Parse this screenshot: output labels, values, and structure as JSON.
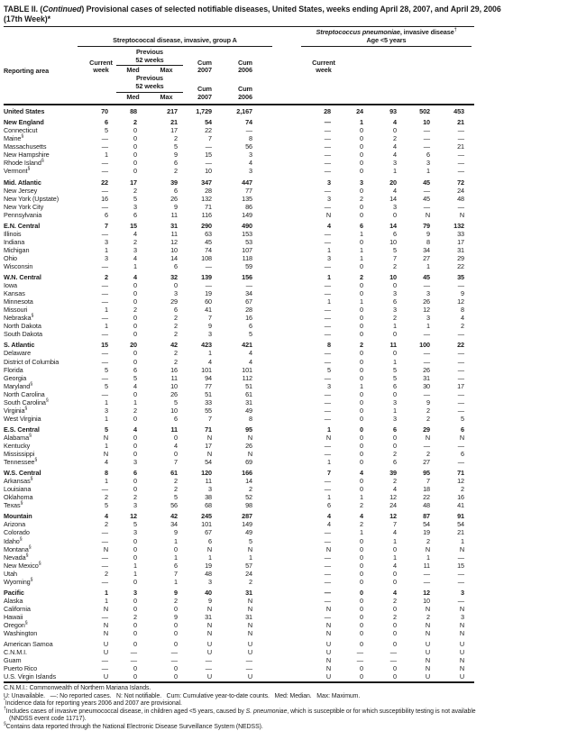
{
  "title": {
    "label": "TABLE II. (",
    "continued": "Continued",
    "rest": ") Provisional cases of selected notifiable diseases, United States, weeks ending April 28, 2007, and April 29, 2006",
    "line2": "(17th Week)*"
  },
  "table": {
    "reporting_area_label": "Reporting area",
    "group_a": {
      "title": "Streptococcal disease, invasive, group A"
    },
    "group_b": {
      "title_italic": "Streptococcus pneumoniae",
      "title_rest": ", invasive disease",
      "title_sup": "†",
      "subtitle": "Age <5 years"
    },
    "col_headers": {
      "current1": "Current",
      "current2": "week",
      "prev1": "Previous",
      "prev2": "52 weeks",
      "med": "Med",
      "max": "Max",
      "cum": "Cum",
      "y2007": "2007",
      "y2006": "2006"
    },
    "rows": [
      {
        "area": "United States",
        "bold": true,
        "gap": false,
        "a": [
          "70",
          "88",
          "217",
          "1,729",
          "2,167"
        ],
        "b": [
          "28",
          "24",
          "93",
          "502",
          "453"
        ]
      },
      {
        "area": "New England",
        "bold": true,
        "gap": true,
        "a": [
          "6",
          "2",
          "21",
          "54",
          "74"
        ],
        "b": [
          "—",
          "1",
          "4",
          "10",
          "21"
        ]
      },
      {
        "area": "Connecticut",
        "a": [
          "5",
          "0",
          "17",
          "22",
          "—"
        ],
        "b": [
          "—",
          "0",
          "0",
          "—",
          "—"
        ]
      },
      {
        "area": "Maine",
        "sup": "§",
        "a": [
          "—",
          "0",
          "2",
          "7",
          "8"
        ],
        "b": [
          "—",
          "0",
          "2",
          "—",
          "—"
        ]
      },
      {
        "area": "Massachusetts",
        "a": [
          "—",
          "0",
          "5",
          "—",
          "56"
        ],
        "b": [
          "—",
          "0",
          "4",
          "—",
          "21"
        ]
      },
      {
        "area": "New Hampshire",
        "a": [
          "1",
          "0",
          "9",
          "15",
          "3"
        ],
        "b": [
          "—",
          "0",
          "4",
          "6",
          "—"
        ]
      },
      {
        "area": "Rhode Island",
        "sup": "§",
        "a": [
          "—",
          "0",
          "6",
          "—",
          "4"
        ],
        "b": [
          "—",
          "0",
          "3",
          "3",
          "—"
        ]
      },
      {
        "area": "Vermont",
        "sup": "§",
        "a": [
          "—",
          "0",
          "2",
          "10",
          "3"
        ],
        "b": [
          "—",
          "0",
          "1",
          "1",
          "—"
        ]
      },
      {
        "area": "Mid. Atlantic",
        "bold": true,
        "gap": true,
        "a": [
          "22",
          "17",
          "39",
          "347",
          "447"
        ],
        "b": [
          "3",
          "3",
          "20",
          "45",
          "72"
        ]
      },
      {
        "area": "New Jersey",
        "a": [
          "—",
          "2",
          "6",
          "28",
          "77"
        ],
        "b": [
          "—",
          "0",
          "4",
          "—",
          "24"
        ]
      },
      {
        "area": "New York (Upstate)",
        "a": [
          "16",
          "5",
          "26",
          "132",
          "135"
        ],
        "b": [
          "3",
          "2",
          "14",
          "45",
          "48"
        ]
      },
      {
        "area": "New York City",
        "a": [
          "—",
          "3",
          "9",
          "71",
          "86"
        ],
        "b": [
          "—",
          "0",
          "3",
          "—",
          "—"
        ]
      },
      {
        "area": "Pennsylvania",
        "a": [
          "6",
          "6",
          "11",
          "116",
          "149"
        ],
        "b": [
          "N",
          "0",
          "0",
          "N",
          "N"
        ]
      },
      {
        "area": "E.N. Central",
        "bold": true,
        "gap": true,
        "a": [
          "7",
          "15",
          "31",
          "290",
          "490"
        ],
        "b": [
          "4",
          "6",
          "14",
          "79",
          "132"
        ]
      },
      {
        "area": "Illinois",
        "a": [
          "—",
          "4",
          "11",
          "63",
          "153"
        ],
        "b": [
          "—",
          "1",
          "6",
          "9",
          "33"
        ]
      },
      {
        "area": "Indiana",
        "a": [
          "3",
          "2",
          "12",
          "45",
          "53"
        ],
        "b": [
          "—",
          "0",
          "10",
          "8",
          "17"
        ]
      },
      {
        "area": "Michigan",
        "a": [
          "1",
          "3",
          "10",
          "74",
          "107"
        ],
        "b": [
          "1",
          "1",
          "5",
          "34",
          "31"
        ]
      },
      {
        "area": "Ohio",
        "a": [
          "3",
          "4",
          "14",
          "108",
          "118"
        ],
        "b": [
          "3",
          "1",
          "7",
          "27",
          "29"
        ]
      },
      {
        "area": "Wisconsin",
        "a": [
          "—",
          "1",
          "6",
          "—",
          "59"
        ],
        "b": [
          "—",
          "0",
          "2",
          "1",
          "22"
        ]
      },
      {
        "area": "W.N. Central",
        "bold": true,
        "gap": true,
        "a": [
          "2",
          "4",
          "32",
          "139",
          "156"
        ],
        "b": [
          "1",
          "2",
          "10",
          "45",
          "35"
        ]
      },
      {
        "area": "Iowa",
        "a": [
          "—",
          "0",
          "0",
          "—",
          "—"
        ],
        "b": [
          "—",
          "0",
          "0",
          "—",
          "—"
        ]
      },
      {
        "area": "Kansas",
        "a": [
          "—",
          "0",
          "3",
          "19",
          "34"
        ],
        "b": [
          "—",
          "0",
          "3",
          "3",
          "9"
        ]
      },
      {
        "area": "Minnesota",
        "a": [
          "—",
          "0",
          "29",
          "60",
          "67"
        ],
        "b": [
          "1",
          "1",
          "6",
          "26",
          "12"
        ]
      },
      {
        "area": "Missouri",
        "a": [
          "1",
          "2",
          "6",
          "41",
          "28"
        ],
        "b": [
          "—",
          "0",
          "3",
          "12",
          "8"
        ]
      },
      {
        "area": "Nebraska",
        "sup": "§",
        "a": [
          "—",
          "0",
          "2",
          "7",
          "16"
        ],
        "b": [
          "—",
          "0",
          "2",
          "3",
          "4"
        ]
      },
      {
        "area": "North Dakota",
        "a": [
          "1",
          "0",
          "2",
          "9",
          "6"
        ],
        "b": [
          "—",
          "0",
          "1",
          "1",
          "2"
        ]
      },
      {
        "area": "South Dakota",
        "a": [
          "—",
          "0",
          "2",
          "3",
          "5"
        ],
        "b": [
          "—",
          "0",
          "0",
          "—",
          "—"
        ]
      },
      {
        "area": "S. Atlantic",
        "bold": true,
        "gap": true,
        "a": [
          "15",
          "20",
          "42",
          "423",
          "421"
        ],
        "b": [
          "8",
          "2",
          "11",
          "100",
          "22"
        ]
      },
      {
        "area": "Delaware",
        "a": [
          "—",
          "0",
          "2",
          "1",
          "4"
        ],
        "b": [
          "—",
          "0",
          "0",
          "—",
          "—"
        ]
      },
      {
        "area": "District of Columbia",
        "a": [
          "—",
          "0",
          "2",
          "4",
          "4"
        ],
        "b": [
          "—",
          "0",
          "1",
          "—",
          "—"
        ]
      },
      {
        "area": "Florida",
        "a": [
          "5",
          "6",
          "16",
          "101",
          "101"
        ],
        "b": [
          "5",
          "0",
          "5",
          "26",
          "—"
        ]
      },
      {
        "area": "Georgia",
        "a": [
          "—",
          "5",
          "11",
          "94",
          "112"
        ],
        "b": [
          "—",
          "0",
          "5",
          "31",
          "—"
        ]
      },
      {
        "area": "Maryland",
        "sup": "§",
        "a": [
          "5",
          "4",
          "10",
          "77",
          "51"
        ],
        "b": [
          "3",
          "1",
          "6",
          "30",
          "17"
        ]
      },
      {
        "area": "North Carolina",
        "a": [
          "—",
          "0",
          "26",
          "51",
          "61"
        ],
        "b": [
          "—",
          "0",
          "0",
          "—",
          "—"
        ]
      },
      {
        "area": "South Carolina",
        "sup": "§",
        "a": [
          "1",
          "1",
          "5",
          "33",
          "31"
        ],
        "b": [
          "—",
          "0",
          "3",
          "9",
          "—"
        ]
      },
      {
        "area": "Virginia",
        "sup": "§",
        "a": [
          "3",
          "2",
          "10",
          "55",
          "49"
        ],
        "b": [
          "—",
          "0",
          "1",
          "2",
          "—"
        ]
      },
      {
        "area": "West Virginia",
        "a": [
          "1",
          "0",
          "6",
          "7",
          "8"
        ],
        "b": [
          "—",
          "0",
          "3",
          "2",
          "5"
        ]
      },
      {
        "area": "E.S. Central",
        "bold": true,
        "gap": true,
        "a": [
          "5",
          "4",
          "11",
          "71",
          "95"
        ],
        "b": [
          "1",
          "0",
          "6",
          "29",
          "6"
        ]
      },
      {
        "area": "Alabama",
        "sup": "§",
        "a": [
          "N",
          "0",
          "0",
          "N",
          "N"
        ],
        "b": [
          "N",
          "0",
          "0",
          "N",
          "N"
        ]
      },
      {
        "area": "Kentucky",
        "a": [
          "1",
          "0",
          "4",
          "17",
          "26"
        ],
        "b": [
          "—",
          "0",
          "0",
          "—",
          "—"
        ]
      },
      {
        "area": "Mississippi",
        "a": [
          "N",
          "0",
          "0",
          "N",
          "N"
        ],
        "b": [
          "—",
          "0",
          "2",
          "2",
          "6"
        ]
      },
      {
        "area": "Tennessee",
        "sup": "§",
        "a": [
          "4",
          "3",
          "7",
          "54",
          "69"
        ],
        "b": [
          "1",
          "0",
          "6",
          "27",
          "—"
        ]
      },
      {
        "area": "W.S. Central",
        "bold": true,
        "gap": true,
        "a": [
          "8",
          "6",
          "61",
          "120",
          "166"
        ],
        "b": [
          "7",
          "4",
          "39",
          "95",
          "71"
        ]
      },
      {
        "area": "Arkansas",
        "sup": "§",
        "a": [
          "1",
          "0",
          "2",
          "11",
          "14"
        ],
        "b": [
          "—",
          "0",
          "2",
          "7",
          "12"
        ]
      },
      {
        "area": "Louisiana",
        "a": [
          "—",
          "0",
          "2",
          "3",
          "2"
        ],
        "b": [
          "—",
          "0",
          "4",
          "18",
          "2"
        ]
      },
      {
        "area": "Oklahoma",
        "a": [
          "2",
          "2",
          "5",
          "38",
          "52"
        ],
        "b": [
          "1",
          "1",
          "12",
          "22",
          "16"
        ]
      },
      {
        "area": "Texas",
        "sup": "§",
        "a": [
          "5",
          "3",
          "56",
          "68",
          "98"
        ],
        "b": [
          "6",
          "2",
          "24",
          "48",
          "41"
        ]
      },
      {
        "area": "Mountain",
        "bold": true,
        "gap": true,
        "a": [
          "4",
          "12",
          "42",
          "245",
          "287"
        ],
        "b": [
          "4",
          "4",
          "12",
          "87",
          "91"
        ]
      },
      {
        "area": "Arizona",
        "a": [
          "2",
          "5",
          "34",
          "101",
          "149"
        ],
        "b": [
          "4",
          "2",
          "7",
          "54",
          "54"
        ]
      },
      {
        "area": "Colorado",
        "a": [
          "—",
          "3",
          "9",
          "67",
          "49"
        ],
        "b": [
          "—",
          "1",
          "4",
          "19",
          "21"
        ]
      },
      {
        "area": "Idaho",
        "sup": "§",
        "a": [
          "—",
          "0",
          "1",
          "6",
          "5"
        ],
        "b": [
          "—",
          "0",
          "1",
          "2",
          "1"
        ]
      },
      {
        "area": "Montana",
        "sup": "§",
        "a": [
          "N",
          "0",
          "0",
          "N",
          "N"
        ],
        "b": [
          "N",
          "0",
          "0",
          "N",
          "N"
        ]
      },
      {
        "area": "Nevada",
        "sup": "§",
        "a": [
          "—",
          "0",
          "1",
          "1",
          "1"
        ],
        "b": [
          "—",
          "0",
          "1",
          "1",
          "—"
        ]
      },
      {
        "area": "New Mexico",
        "sup": "§",
        "a": [
          "—",
          "1",
          "6",
          "19",
          "57"
        ],
        "b": [
          "—",
          "0",
          "4",
          "11",
          "15"
        ]
      },
      {
        "area": "Utah",
        "a": [
          "2",
          "1",
          "7",
          "48",
          "24"
        ],
        "b": [
          "—",
          "0",
          "0",
          "—",
          "—"
        ]
      },
      {
        "area": "Wyoming",
        "sup": "§",
        "a": [
          "—",
          "0",
          "1",
          "3",
          "2"
        ],
        "b": [
          "—",
          "0",
          "0",
          "—",
          "—"
        ]
      },
      {
        "area": "Pacific",
        "bold": true,
        "gap": true,
        "a": [
          "1",
          "3",
          "9",
          "40",
          "31"
        ],
        "b": [
          "—",
          "0",
          "4",
          "12",
          "3"
        ]
      },
      {
        "area": "Alaska",
        "a": [
          "1",
          "0",
          "2",
          "9",
          "N"
        ],
        "b": [
          "—",
          "0",
          "2",
          "10",
          "—"
        ]
      },
      {
        "area": "California",
        "a": [
          "N",
          "0",
          "0",
          "N",
          "N"
        ],
        "b": [
          "N",
          "0",
          "0",
          "N",
          "N"
        ]
      },
      {
        "area": "Hawaii",
        "a": [
          "—",
          "2",
          "9",
          "31",
          "31"
        ],
        "b": [
          "—",
          "0",
          "2",
          "2",
          "3"
        ]
      },
      {
        "area": "Oregon",
        "sup": "§",
        "a": [
          "N",
          "0",
          "0",
          "N",
          "N"
        ],
        "b": [
          "N",
          "0",
          "0",
          "N",
          "N"
        ]
      },
      {
        "area": "Washington",
        "a": [
          "N",
          "0",
          "0",
          "N",
          "N"
        ],
        "b": [
          "N",
          "0",
          "0",
          "N",
          "N"
        ]
      },
      {
        "area": "American Samoa",
        "gap": true,
        "a": [
          "U",
          "0",
          "0",
          "U",
          "U"
        ],
        "b": [
          "U",
          "0",
          "0",
          "U",
          "U"
        ]
      },
      {
        "area": "C.N.M.I.",
        "a": [
          "U",
          "—",
          "—",
          "U",
          "U"
        ],
        "b": [
          "U",
          "—",
          "—",
          "U",
          "U"
        ]
      },
      {
        "area": "Guam",
        "a": [
          "—",
          "—",
          "—",
          "—",
          "—"
        ],
        "b": [
          "N",
          "—",
          "—",
          "N",
          "N"
        ]
      },
      {
        "area": "Puerto Rico",
        "a": [
          "—",
          "0",
          "0",
          "—",
          "—"
        ],
        "b": [
          "N",
          "0",
          "0",
          "N",
          "N"
        ]
      },
      {
        "area": "U.S. Virgin Islands",
        "a": [
          "U",
          "0",
          "0",
          "U",
          "U"
        ],
        "b": [
          "U",
          "0",
          "0",
          "U",
          "U"
        ]
      }
    ]
  },
  "footnotes": {
    "line1": "C.N.M.I.: Commonwealth of Northern Mariana Islands.",
    "line2": "U: Unavailable.   —: No reported cases.   N: Not notifiable.   Cum: Cumulative year-to-date counts.   Med: Median.   Max: Maximum.",
    "fn_star_marker": "*",
    "fn_star_text": "Incidence data for reporting years 2006 and 2007 are provisional.",
    "fn_dagger_marker": "†",
    "fn_dagger_pre": "Includes cases of invasive pneumococcal disease, in children aged <5 years, caused by ",
    "fn_dagger_italic": "S. pneumoniae",
    "fn_dagger_post": ", which is susceptible or for which susceptibility testing is not available",
    "fn_dagger_line2": "(NNDSS event code 11717).",
    "fn_section_marker": "§",
    "fn_section_text": "Contains data reported through the National Electronic Disease Surveillance System (NEDSS)."
  }
}
